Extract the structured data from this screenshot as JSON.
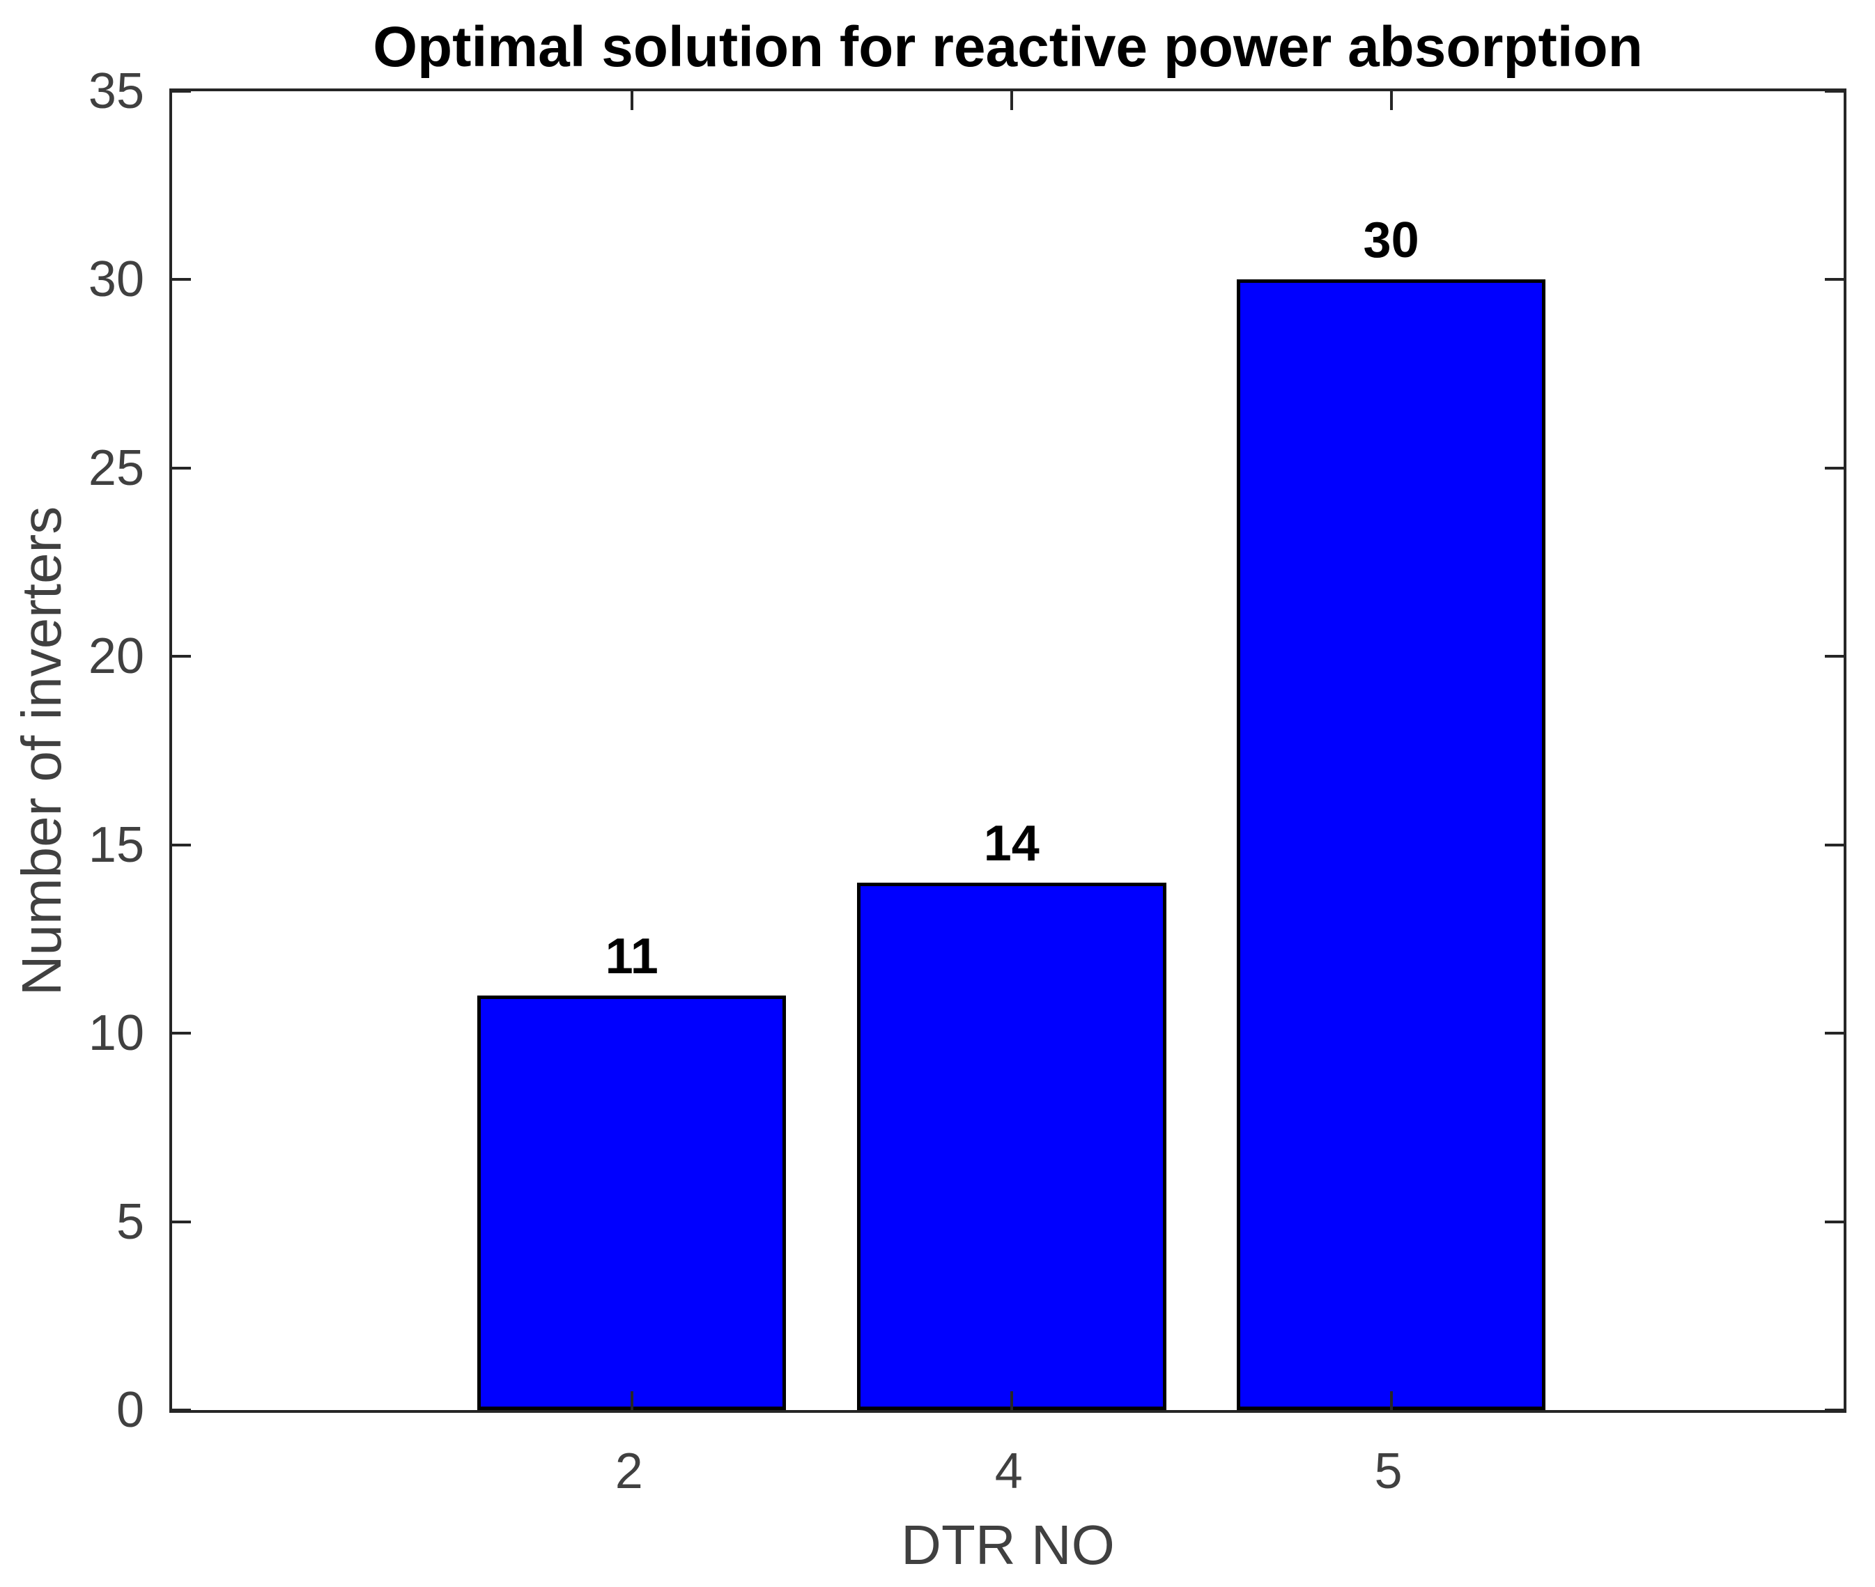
{
  "chart_data": {
    "type": "bar",
    "title": "Optimal solution for reactive power absorption",
    "xlabel": "DTR NO",
    "ylabel": "Number of inverters",
    "categories": [
      "2",
      "4",
      "5"
    ],
    "values": [
      11,
      14,
      30
    ],
    "bar_value_labels": [
      "11",
      "14",
      "30"
    ],
    "yticks": [
      0,
      5,
      10,
      15,
      20,
      25,
      30,
      35
    ],
    "ytick_labels": [
      "0",
      "5",
      "10",
      "15",
      "20",
      "25",
      "30",
      "35"
    ],
    "ylim": [
      0,
      35
    ],
    "grid": false,
    "legend": null,
    "box": true,
    "tick_direction": "in",
    "bar_fill_color": "#0000ff",
    "bar_edge_color": "#000000",
    "axis_color": "#262626",
    "tick_label_color": "#404040",
    "title_color": "#000000",
    "value_label_color": "#000000",
    "background_color": "#ffffff"
  }
}
